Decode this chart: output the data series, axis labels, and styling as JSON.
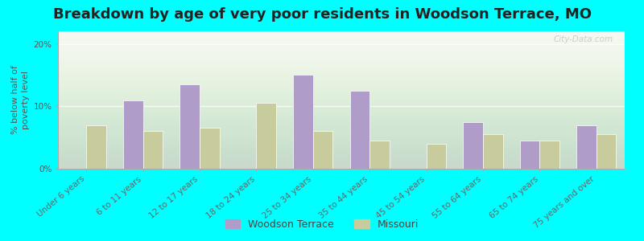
{
  "title": "Breakdown by age of very poor residents in Woodson Terrace, MO",
  "ylabel": "% below half of\npoverty level",
  "categories": [
    "Under 6 years",
    "6 to 11 years",
    "12 to 17 years",
    "18 to 24 years",
    "25 to 34 years",
    "35 to 44 years",
    "45 to 54 years",
    "55 to 64 years",
    "65 to 74 years",
    "75 years and over"
  ],
  "woodson_values": [
    0.0,
    11.0,
    13.5,
    0.0,
    15.0,
    12.5,
    0.0,
    7.5,
    4.5,
    7.0
  ],
  "missouri_values": [
    7.0,
    6.0,
    6.5,
    10.5,
    6.0,
    4.5,
    4.0,
    5.5,
    4.5,
    5.5
  ],
  "woodson_color": "#b09cc8",
  "missouri_color": "#c8cc9c",
  "background_color": "#00ffff",
  "ylim": [
    0,
    22
  ],
  "yticks": [
    0,
    10,
    20
  ],
  "ytick_labels": [
    "0%",
    "10%",
    "20%"
  ],
  "legend_woodson": "Woodson Terrace",
  "legend_missouri": "Missouri",
  "bar_width": 0.35,
  "title_fontsize": 13,
  "axis_label_fontsize": 8,
  "tick_label_fontsize": 7.5,
  "watermark": "City-Data.com"
}
